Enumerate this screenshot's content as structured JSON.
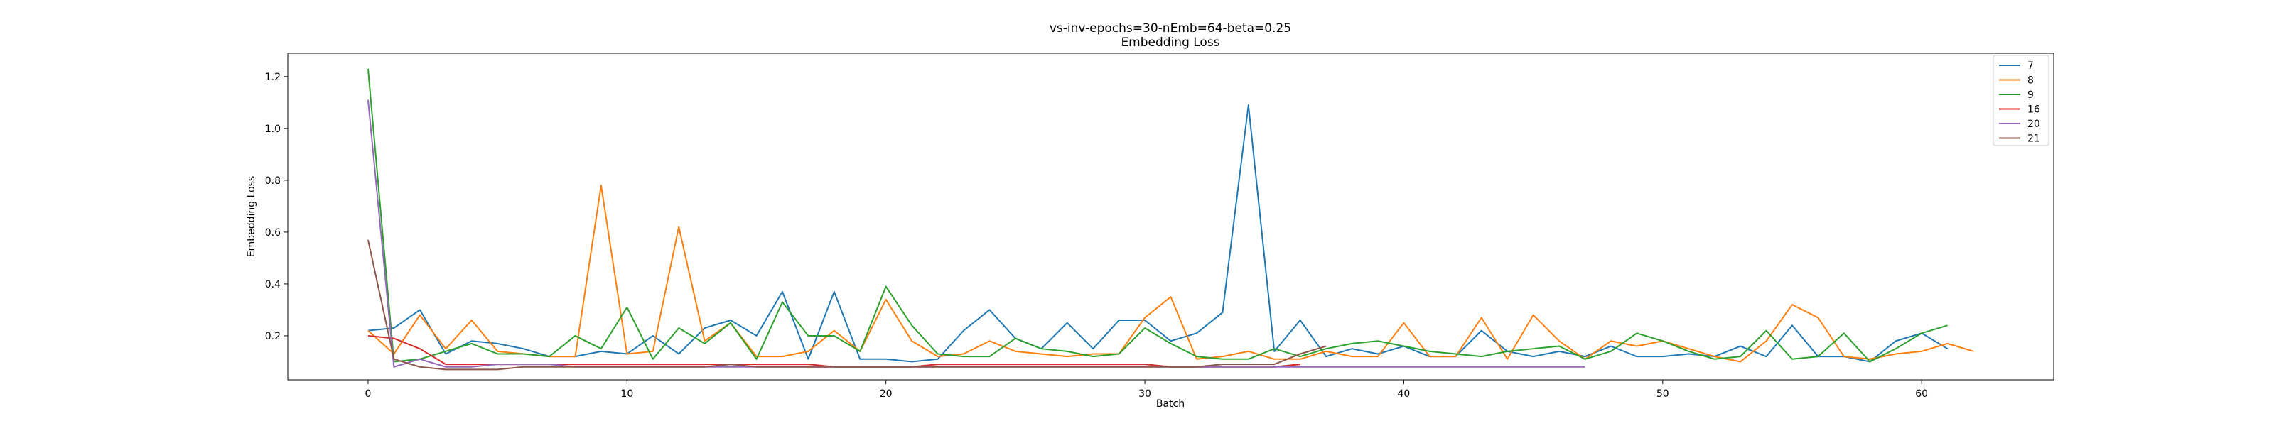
{
  "chart_data": {
    "type": "line",
    "title": "vs-inv-epochs=30-nEmb=64-beta=0.25",
    "subtitle": "Embedding Loss",
    "xlabel": "Batch",
    "ylabel": "Embedding Loss",
    "xlim": [
      -3.1,
      65.1
    ],
    "ylim": [
      0.03,
      1.29
    ],
    "xticks": [
      0,
      10,
      20,
      30,
      40,
      50,
      60
    ],
    "yticks": [
      0.2,
      0.4,
      0.6,
      0.8,
      1.0,
      1.2
    ],
    "ytick_labels": [
      "0.2",
      "0.4",
      "0.6",
      "0.8",
      "1.0",
      "1.2"
    ],
    "grid": false,
    "legend_position": "top-right",
    "series": [
      {
        "name": "7",
        "color": "#1f77b4",
        "values": [
          0.22,
          0.23,
          0.3,
          0.13,
          0.18,
          0.17,
          0.15,
          0.12,
          0.12,
          0.14,
          0.13,
          0.2,
          0.13,
          0.23,
          0.26,
          0.2,
          0.37,
          0.11,
          0.37,
          0.11,
          0.11,
          0.1,
          0.11,
          0.22,
          0.3,
          0.19,
          0.15,
          0.25,
          0.15,
          0.26,
          0.26,
          0.18,
          0.21,
          0.29,
          1.09,
          0.14,
          0.26,
          0.12,
          0.15,
          0.13,
          0.16,
          0.12,
          0.12,
          0.22,
          0.14,
          0.12,
          0.14,
          0.12,
          0.16,
          0.12,
          0.12,
          0.13,
          0.12,
          0.16,
          0.12,
          0.24,
          0.12,
          0.12,
          0.1,
          0.18,
          0.21,
          0.15
        ]
      },
      {
        "name": "8",
        "color": "#ff7f0e",
        "values": [
          0.22,
          0.13,
          0.28,
          0.15,
          0.26,
          0.14,
          0.13,
          0.12,
          0.12,
          0.78,
          0.13,
          0.14,
          0.62,
          0.18,
          0.25,
          0.12,
          0.12,
          0.14,
          0.22,
          0.14,
          0.34,
          0.18,
          0.12,
          0.13,
          0.18,
          0.14,
          0.13,
          0.12,
          0.13,
          0.13,
          0.27,
          0.35,
          0.11,
          0.12,
          0.14,
          0.11,
          0.11,
          0.14,
          0.12,
          0.12,
          0.25,
          0.12,
          0.12,
          0.27,
          0.11,
          0.28,
          0.18,
          0.11,
          0.18,
          0.16,
          0.18,
          0.15,
          0.12,
          0.1,
          0.18,
          0.32,
          0.27,
          0.12,
          0.11,
          0.13,
          0.14,
          0.17,
          0.14
        ]
      },
      {
        "name": "9",
        "color": "#2ca02c",
        "values": [
          1.23,
          0.1,
          0.11,
          0.14,
          0.17,
          0.13,
          0.13,
          0.12,
          0.2,
          0.15,
          0.31,
          0.11,
          0.23,
          0.17,
          0.25,
          0.11,
          0.33,
          0.2,
          0.2,
          0.14,
          0.39,
          0.24,
          0.13,
          0.12,
          0.12,
          0.19,
          0.15,
          0.14,
          0.12,
          0.13,
          0.23,
          0.17,
          0.12,
          0.11,
          0.11,
          0.15,
          0.12,
          0.15,
          0.17,
          0.18,
          0.16,
          0.14,
          0.13,
          0.12,
          0.14,
          0.15,
          0.16,
          0.11,
          0.14,
          0.21,
          0.18,
          0.14,
          0.11,
          0.12,
          0.22,
          0.11,
          0.12,
          0.21,
          0.1,
          0.15,
          0.21,
          0.24
        ]
      },
      {
        "name": "16",
        "color": "#d62728",
        "values": [
          0.2,
          0.19,
          0.15,
          0.09,
          0.09,
          0.09,
          0.09,
          0.09,
          0.09,
          0.09,
          0.09,
          0.09,
          0.09,
          0.09,
          0.09,
          0.09,
          0.09,
          0.09,
          0.08,
          0.08,
          0.08,
          0.08,
          0.09,
          0.09,
          0.09,
          0.09,
          0.09,
          0.09,
          0.09,
          0.09,
          0.09,
          0.08,
          0.08,
          0.08,
          0.08,
          0.08,
          0.09
        ]
      },
      {
        "name": "20",
        "color": "#9467bd",
        "values": [
          1.11,
          0.08,
          0.11,
          0.08,
          0.08,
          0.09,
          0.09,
          0.09,
          0.08,
          0.08,
          0.08,
          0.08,
          0.08,
          0.08,
          0.08,
          0.08,
          0.08,
          0.08,
          0.08,
          0.08,
          0.08,
          0.08,
          0.08,
          0.08,
          0.08,
          0.08,
          0.08,
          0.08,
          0.08,
          0.08,
          0.08,
          0.08,
          0.08,
          0.08,
          0.08,
          0.08,
          0.08,
          0.08,
          0.08,
          0.08,
          0.08,
          0.08,
          0.08,
          0.08,
          0.08,
          0.08,
          0.08,
          0.08
        ]
      },
      {
        "name": "21",
        "color": "#8c564b",
        "values": [
          0.57,
          0.11,
          0.08,
          0.07,
          0.07,
          0.07,
          0.08,
          0.08,
          0.08,
          0.08,
          0.08,
          0.08,
          0.08,
          0.08,
          0.09,
          0.08,
          0.08,
          0.08,
          0.08,
          0.08,
          0.08,
          0.08,
          0.08,
          0.08,
          0.08,
          0.08,
          0.08,
          0.08,
          0.08,
          0.08,
          0.08,
          0.08,
          0.08,
          0.09,
          0.09,
          0.09,
          0.13,
          0.16
        ]
      }
    ]
  }
}
